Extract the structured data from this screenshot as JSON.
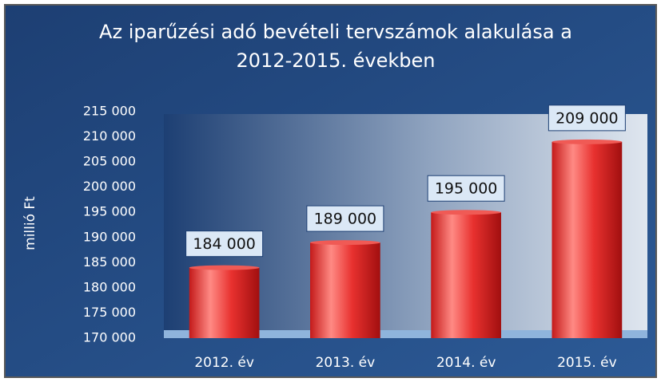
{
  "chart_data": {
    "type": "bar",
    "title": "Az iparűzési adó bevételi tervszámok alakulása a 2012-2015. években",
    "ylabel": "millió Ft",
    "categories": [
      "2012. év",
      "2013. év",
      "2014. év",
      "2015. év"
    ],
    "values": [
      184000,
      189000,
      195000,
      209000
    ],
    "value_labels": [
      "184 000",
      "189 000",
      "195 000",
      "209 000"
    ],
    "color": "#e8312f",
    "ylim": [
      170000,
      215000
    ],
    "yticks": [
      {
        "value": 170000,
        "label": "170 000"
      },
      {
        "value": 175000,
        "label": "175 000"
      },
      {
        "value": 180000,
        "label": "180 000"
      },
      {
        "value": 185000,
        "label": "185 000"
      },
      {
        "value": 190000,
        "label": "190 000"
      },
      {
        "value": 195000,
        "label": "195 000"
      },
      {
        "value": 200000,
        "label": "200 000"
      },
      {
        "value": 205000,
        "label": "205 000"
      },
      {
        "value": 210000,
        "label": "210 000"
      },
      {
        "value": 215000,
        "label": "215 000"
      }
    ],
    "grid": false
  }
}
